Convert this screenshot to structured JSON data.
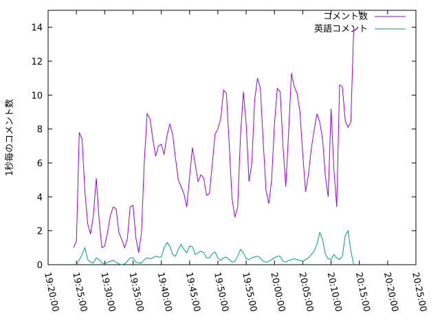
{
  "chart_data": {
    "type": "line",
    "ylabel": "1秒毎のコメント数",
    "xlabel": "",
    "ylim": [
      0,
      15
    ],
    "yticks": [
      0,
      2,
      4,
      6,
      8,
      10,
      12,
      14
    ],
    "xlim": [
      "19:20:00",
      "20:25:00"
    ],
    "xticks": [
      "19:20:00",
      "19:25:00",
      "19:30:00",
      "19:35:00",
      "19:40:00",
      "19:45:00",
      "19:50:00",
      "19:55:00",
      "20:00:00",
      "20:05:00",
      "20:10:00",
      "20:15:00",
      "20:20:00",
      "20:25:00"
    ],
    "grid": false,
    "legend_position": "top-right",
    "series": [
      {
        "name": "コメント数",
        "color": "#9400d3",
        "points": [
          [
            "19:24:30",
            1.0
          ],
          [
            "19:25:00",
            1.4
          ],
          [
            "19:25:30",
            7.8
          ],
          [
            "19:26:00",
            7.4
          ],
          [
            "19:26:30",
            4.3
          ],
          [
            "19:27:00",
            2.4
          ],
          [
            "19:27:30",
            1.8
          ],
          [
            "19:28:00",
            2.9
          ],
          [
            "19:28:30",
            5.1
          ],
          [
            "19:29:00",
            2.7
          ],
          [
            "19:29:30",
            1.0
          ],
          [
            "19:30:00",
            1.1
          ],
          [
            "19:30:30",
            1.9
          ],
          [
            "19:31:00",
            2.9
          ],
          [
            "19:31:30",
            3.4
          ],
          [
            "19:32:00",
            3.3
          ],
          [
            "19:32:30",
            1.9
          ],
          [
            "19:33:00",
            1.5
          ],
          [
            "19:33:30",
            1.0
          ],
          [
            "19:34:00",
            1.5
          ],
          [
            "19:34:30",
            3.4
          ],
          [
            "19:35:00",
            3.5
          ],
          [
            "19:35:30",
            1.6
          ],
          [
            "19:36:00",
            0.7
          ],
          [
            "19:36:30",
            1.9
          ],
          [
            "19:37:00",
            6.1
          ],
          [
            "19:37:30",
            8.9
          ],
          [
            "19:38:00",
            8.6
          ],
          [
            "19:38:30",
            7.4
          ],
          [
            "19:39:00",
            6.4
          ],
          [
            "19:39:30",
            7.0
          ],
          [
            "19:40:00",
            7.1
          ],
          [
            "19:40:30",
            6.5
          ],
          [
            "19:41:00",
            7.6
          ],
          [
            "19:41:30",
            8.3
          ],
          [
            "19:42:00",
            7.7
          ],
          [
            "19:42:30",
            6.3
          ],
          [
            "19:43:00",
            5.0
          ],
          [
            "19:43:30",
            4.6
          ],
          [
            "19:44:00",
            4.2
          ],
          [
            "19:44:30",
            3.4
          ],
          [
            "19:45:00",
            5.2
          ],
          [
            "19:45:30",
            6.9
          ],
          [
            "19:46:00",
            5.9
          ],
          [
            "19:46:30",
            4.9
          ],
          [
            "19:47:00",
            5.3
          ],
          [
            "19:47:30",
            5.1
          ],
          [
            "19:48:00",
            4.1
          ],
          [
            "19:48:30",
            4.2
          ],
          [
            "19:49:00",
            5.9
          ],
          [
            "19:49:30",
            7.7
          ],
          [
            "19:50:00",
            8.0
          ],
          [
            "19:50:30",
            8.6
          ],
          [
            "19:51:00",
            10.3
          ],
          [
            "19:51:30",
            10.1
          ],
          [
            "19:52:00",
            7.1
          ],
          [
            "19:52:30",
            3.9
          ],
          [
            "19:53:00",
            2.8
          ],
          [
            "19:53:30",
            3.4
          ],
          [
            "19:54:00",
            7.6
          ],
          [
            "19:54:30",
            10.2
          ],
          [
            "19:55:00",
            8.3
          ],
          [
            "19:55:30",
            4.9
          ],
          [
            "19:56:00",
            6.0
          ],
          [
            "19:56:30",
            9.7
          ],
          [
            "19:57:00",
            11.0
          ],
          [
            "19:57:30",
            10.4
          ],
          [
            "19:58:00",
            7.3
          ],
          [
            "19:58:30",
            4.4
          ],
          [
            "19:59:00",
            3.6
          ],
          [
            "19:59:30",
            5.0
          ],
          [
            "20:00:00",
            8.3
          ],
          [
            "20:00:30",
            10.4
          ],
          [
            "20:01:00",
            10.2
          ],
          [
            "20:01:30",
            7.0
          ],
          [
            "20:02:00",
            4.6
          ],
          [
            "20:02:30",
            7.8
          ],
          [
            "20:03:00",
            11.3
          ],
          [
            "20:03:30",
            10.5
          ],
          [
            "20:04:00",
            10.1
          ],
          [
            "20:04:30",
            9.0
          ],
          [
            "20:05:00",
            6.5
          ],
          [
            "20:05:30",
            4.3
          ],
          [
            "20:06:00",
            5.3
          ],
          [
            "20:06:30",
            6.8
          ],
          [
            "20:07:00",
            7.9
          ],
          [
            "20:07:30",
            8.9
          ],
          [
            "20:08:00",
            8.4
          ],
          [
            "20:08:30",
            7.4
          ],
          [
            "20:09:00",
            5.2
          ],
          [
            "20:09:30",
            4.0
          ],
          [
            "20:10:00",
            9.2
          ],
          [
            "20:10:30",
            5.6
          ],
          [
            "20:11:00",
            3.4
          ],
          [
            "20:11:30",
            10.6
          ],
          [
            "20:12:00",
            10.5
          ],
          [
            "20:12:30",
            8.5
          ],
          [
            "20:13:00",
            8.1
          ],
          [
            "20:13:30",
            8.4
          ],
          [
            "20:14:00",
            14.0
          ]
        ]
      },
      {
        "name": "英語コメント",
        "color": "#009e73",
        "points": [
          [
            "19:25:00",
            0.0
          ],
          [
            "19:25:30",
            0.3
          ],
          [
            "19:26:00",
            0.6
          ],
          [
            "19:26:30",
            1.0
          ],
          [
            "19:27:00",
            0.3
          ],
          [
            "19:27:30",
            0.15
          ],
          [
            "19:28:00",
            0.1
          ],
          [
            "19:28:30",
            0.4
          ],
          [
            "19:29:00",
            0.3
          ],
          [
            "19:29:30",
            0.1
          ],
          [
            "19:30:00",
            0.05
          ],
          [
            "19:30:30",
            0.15
          ],
          [
            "19:31:00",
            0.2
          ],
          [
            "19:31:30",
            0.25
          ],
          [
            "19:32:00",
            0.15
          ],
          [
            "19:32:30",
            0.05
          ],
          [
            "19:33:00",
            0.0
          ],
          [
            "19:33:30",
            0.05
          ],
          [
            "19:34:00",
            0.2
          ],
          [
            "19:34:30",
            0.4
          ],
          [
            "19:35:00",
            0.4
          ],
          [
            "19:35:30",
            0.15
          ],
          [
            "19:36:00",
            0.1
          ],
          [
            "19:36:30",
            0.1
          ],
          [
            "19:37:00",
            0.3
          ],
          [
            "19:37:30",
            0.4
          ],
          [
            "19:38:00",
            0.35
          ],
          [
            "19:38:30",
            0.4
          ],
          [
            "19:39:00",
            0.5
          ],
          [
            "19:39:30",
            0.45
          ],
          [
            "19:40:00",
            0.45
          ],
          [
            "19:40:30",
            1.0
          ],
          [
            "19:41:00",
            1.3
          ],
          [
            "19:41:30",
            1.1
          ],
          [
            "19:42:00",
            0.6
          ],
          [
            "19:42:30",
            0.5
          ],
          [
            "19:43:00",
            0.9
          ],
          [
            "19:43:30",
            1.2
          ],
          [
            "19:44:00",
            0.9
          ],
          [
            "19:44:30",
            0.7
          ],
          [
            "19:45:00",
            1.1
          ],
          [
            "19:45:30",
            1.05
          ],
          [
            "19:46:00",
            0.6
          ],
          [
            "19:46:30",
            0.7
          ],
          [
            "19:47:00",
            0.8
          ],
          [
            "19:47:30",
            0.7
          ],
          [
            "19:48:00",
            0.4
          ],
          [
            "19:48:30",
            0.4
          ],
          [
            "19:49:00",
            0.65
          ],
          [
            "19:49:30",
            0.75
          ],
          [
            "19:50:00",
            0.4
          ],
          [
            "19:50:30",
            0.25
          ],
          [
            "19:51:00",
            0.4
          ],
          [
            "19:51:30",
            0.45
          ],
          [
            "19:52:00",
            0.3
          ],
          [
            "19:52:30",
            0.15
          ],
          [
            "19:53:00",
            0.2
          ],
          [
            "19:53:30",
            0.5
          ],
          [
            "19:54:00",
            0.9
          ],
          [
            "19:54:30",
            0.7
          ],
          [
            "19:55:00",
            0.35
          ],
          [
            "19:55:30",
            0.3
          ],
          [
            "19:56:00",
            0.4
          ],
          [
            "19:56:30",
            0.45
          ],
          [
            "19:57:00",
            0.5
          ],
          [
            "19:57:30",
            0.4
          ],
          [
            "19:58:00",
            0.2
          ],
          [
            "19:58:30",
            0.15
          ],
          [
            "19:59:00",
            0.2
          ],
          [
            "19:59:30",
            0.3
          ],
          [
            "20:00:00",
            0.4
          ],
          [
            "20:00:30",
            0.5
          ],
          [
            "20:01:00",
            0.5
          ],
          [
            "20:01:30",
            0.2
          ],
          [
            "20:02:00",
            0.15
          ],
          [
            "20:02:30",
            0.25
          ],
          [
            "20:03:00",
            0.3
          ],
          [
            "20:03:30",
            0.35
          ],
          [
            "20:04:00",
            0.3
          ],
          [
            "20:04:30",
            0.25
          ],
          [
            "20:05:00",
            0.2
          ],
          [
            "20:05:30",
            0.3
          ],
          [
            "20:06:00",
            0.4
          ],
          [
            "20:06:30",
            0.6
          ],
          [
            "20:07:00",
            0.8
          ],
          [
            "20:07:30",
            1.2
          ],
          [
            "20:08:00",
            1.9
          ],
          [
            "20:08:30",
            1.5
          ],
          [
            "20:09:00",
            0.6
          ],
          [
            "20:09:30",
            0.35
          ],
          [
            "20:10:00",
            0.3
          ],
          [
            "20:10:30",
            0.6
          ],
          [
            "20:11:00",
            0.4
          ],
          [
            "20:11:30",
            0.3
          ],
          [
            "20:12:00",
            0.5
          ],
          [
            "20:12:30",
            1.7
          ],
          [
            "20:13:00",
            2.0
          ],
          [
            "20:13:30",
            0.8
          ],
          [
            "20:14:00",
            0.0
          ]
        ]
      }
    ]
  }
}
